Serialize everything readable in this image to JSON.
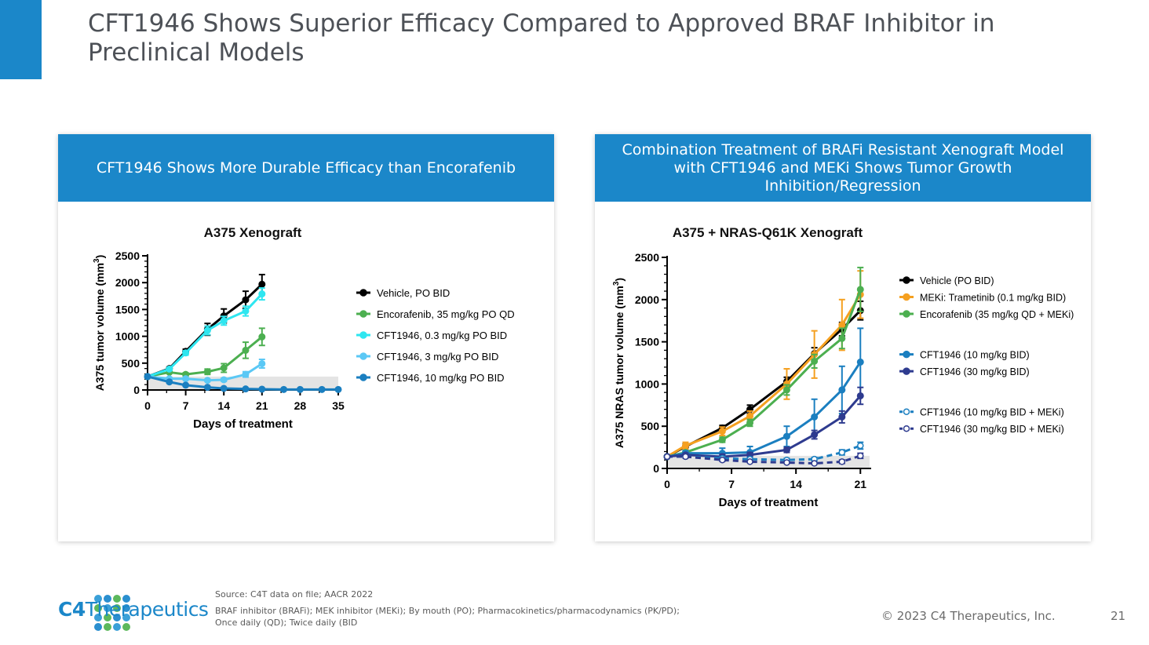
{
  "slide": {
    "title": "CFT1946 Shows Superior Efficacy Compared to Approved BRAF Inhibitor in Preclinical Models",
    "source": "Source: C4T  data on file; AACR 2022",
    "footnote_line1": "BRAF inhibitor (BRAFi); MEK inhibitor (MEKi); By mouth (PO); Pharmacokinetics/pharmacodynamics (PK/PD);",
    "footnote_line2": "Once daily (QD); Twice daily (BID",
    "copyright": "© 2023 C4 Therapeutics, Inc.",
    "page_number": "21",
    "logo_c4": "C4",
    "logo_name": "Therapeutics",
    "accent_color": "#1b87c9"
  },
  "left_panel": {
    "header": "CFT1946 Shows More Durable Efficacy than Encorafenib"
  },
  "right_panel": {
    "header": "Combination Treatment of BRAFi Resistant Xenograft Model with CFT1946 and MEKi Shows Tumor Growth Inhibition/Regression"
  },
  "chart_data": [
    {
      "type": "line",
      "title": "A375 Xenograft",
      "xlabel": "Days of treatment",
      "ylabel": "A375 tumor volume (mm3)",
      "ylabel_main": "A375 tumor volume (mm",
      "ylabel_sup": "3",
      "ylabel_close": ")",
      "xlim": [
        0,
        35
      ],
      "ylim": [
        0,
        2500
      ],
      "xticks": [
        0,
        7,
        14,
        21,
        28,
        35
      ],
      "yticks": [
        0,
        500,
        1000,
        1500,
        2000,
        2500
      ],
      "shaded_band": [
        0,
        250
      ],
      "legend_position": "right",
      "series": [
        {
          "name": "Vehicle, PO BID",
          "color": "#000000",
          "dashed": false,
          "open": false,
          "x": [
            0,
            4,
            7,
            11,
            14,
            18,
            21
          ],
          "y": [
            250,
            400,
            720,
            1130,
            1380,
            1680,
            1970
          ],
          "err": [
            0,
            20,
            40,
            110,
            130,
            160,
            180
          ]
        },
        {
          "name": "Encorafenib, 35 mg/kg PO QD",
          "color": "#4caf50",
          "dashed": false,
          "open": false,
          "x": [
            0,
            4,
            7,
            11,
            14,
            18,
            21
          ],
          "y": [
            250,
            330,
            290,
            340,
            410,
            740,
            990
          ],
          "err": [
            0,
            20,
            30,
            50,
            80,
            150,
            160
          ]
        },
        {
          "name": "CFT1946, 0.3 mg/kg PO BID",
          "color": "#2ee6f0",
          "dashed": false,
          "open": false,
          "x": [
            0,
            4,
            7,
            11,
            14,
            18,
            21
          ],
          "y": [
            250,
            390,
            690,
            1110,
            1290,
            1470,
            1790
          ],
          "err": [
            0,
            20,
            40,
            80,
            80,
            90,
            110
          ]
        },
        {
          "name": "CFT1946, 3 mg/kg PO BID",
          "color": "#5bc8f5",
          "dashed": false,
          "open": false,
          "x": [
            0,
            4,
            7,
            11,
            14,
            18,
            21
          ],
          "y": [
            250,
            210,
            210,
            180,
            190,
            290,
            490
          ],
          "err": [
            0,
            20,
            20,
            20,
            30,
            50,
            80
          ]
        },
        {
          "name": "CFT1946, 10 mg/kg PO BID",
          "color": "#1b7fc0",
          "dashed": false,
          "open": false,
          "x": [
            0,
            4,
            7,
            11,
            14,
            18,
            21,
            25,
            28,
            32,
            35
          ],
          "y": [
            250,
            150,
            90,
            50,
            30,
            20,
            15,
            10,
            10,
            10,
            10
          ],
          "err": [
            0,
            15,
            15,
            10,
            8,
            5,
            5,
            5,
            5,
            5,
            5
          ]
        }
      ]
    },
    {
      "type": "line",
      "title": "A375 + NRAS-Q61K Xenograft",
      "xlabel": "Days of treatment",
      "ylabel": "A375 NRAS tumor volume (mm3)",
      "ylabel_main": "A375 NRAS tumor volume (mm",
      "ylabel_sup": "3",
      "ylabel_close": ")",
      "xlim": [
        0,
        22
      ],
      "ylim": [
        0,
        2500
      ],
      "xticks": [
        0,
        7,
        14,
        21
      ],
      "yticks": [
        0,
        500,
        1000,
        1500,
        2000,
        2500
      ],
      "shaded_band": [
        0,
        150
      ],
      "legend_position": "right",
      "series": [
        {
          "name": "Vehicle (PO BID)",
          "color": "#000000",
          "dashed": false,
          "open": false,
          "x": [
            0,
            2,
            6,
            9,
            13,
            16,
            19,
            21
          ],
          "y": [
            140,
            260,
            480,
            700,
            1030,
            1360,
            1650,
            1870
          ],
          "err": [
            0,
            30,
            30,
            50,
            50,
            70,
            80,
            110
          ]
        },
        {
          "name": "MEKi: Trametinib (0.1 mg/kg BID)",
          "color": "#f5a020",
          "dashed": false,
          "open": false,
          "x": [
            0,
            2,
            6,
            9,
            13,
            16,
            19,
            21
          ],
          "y": [
            140,
            270,
            440,
            620,
            1000,
            1350,
            1700,
            2060
          ],
          "err": [
            0,
            40,
            50,
            60,
            180,
            280,
            300,
            280
          ]
        },
        {
          "name": "Encorafenib (35 mg/kg QD + MEKi)",
          "color": "#4caf50",
          "dashed": false,
          "open": false,
          "x": [
            0,
            2,
            6,
            9,
            13,
            16,
            19,
            21
          ],
          "y": [
            140,
            190,
            340,
            540,
            930,
            1270,
            1540,
            2120
          ],
          "err": [
            0,
            20,
            30,
            40,
            60,
            80,
            120,
            260
          ]
        },
        {
          "name": "CFT1946 (10 mg/kg BID)",
          "color": "#1b7fc0",
          "dashed": false,
          "open": false,
          "x": [
            0,
            2,
            6,
            9,
            13,
            16,
            19,
            21
          ],
          "y": [
            140,
            180,
            180,
            190,
            380,
            610,
            930,
            1260
          ],
          "err": [
            0,
            30,
            60,
            70,
            120,
            210,
            280,
            400
          ]
        },
        {
          "name": "CFT1946 (30 mg/kg BID)",
          "color": "#2e3b8f",
          "dashed": false,
          "open": false,
          "x": [
            0,
            2,
            6,
            9,
            13,
            16,
            19,
            21
          ],
          "y": [
            140,
            160,
            140,
            160,
            220,
            400,
            610,
            860
          ],
          "err": [
            0,
            20,
            30,
            30,
            30,
            50,
            70,
            100
          ]
        },
        {
          "name": "CFT1946 (10 mg/kg BID + MEKi)",
          "color": "#1b7fc0",
          "dashed": true,
          "open": true,
          "x": [
            0,
            2,
            6,
            9,
            13,
            16,
            19,
            21
          ],
          "y": [
            140,
            140,
            120,
            110,
            100,
            110,
            190,
            270
          ],
          "err": [
            0,
            15,
            20,
            15,
            20,
            20,
            30,
            40
          ]
        },
        {
          "name": "CFT1946 (30 mg/kg BID + MEKi)",
          "color": "#2e3b8f",
          "dashed": true,
          "open": true,
          "x": [
            0,
            2,
            6,
            9,
            13,
            16,
            19,
            21
          ],
          "y": [
            140,
            140,
            100,
            80,
            70,
            60,
            80,
            150
          ],
          "err": [
            0,
            15,
            15,
            10,
            10,
            10,
            20,
            30
          ]
        }
      ]
    }
  ]
}
